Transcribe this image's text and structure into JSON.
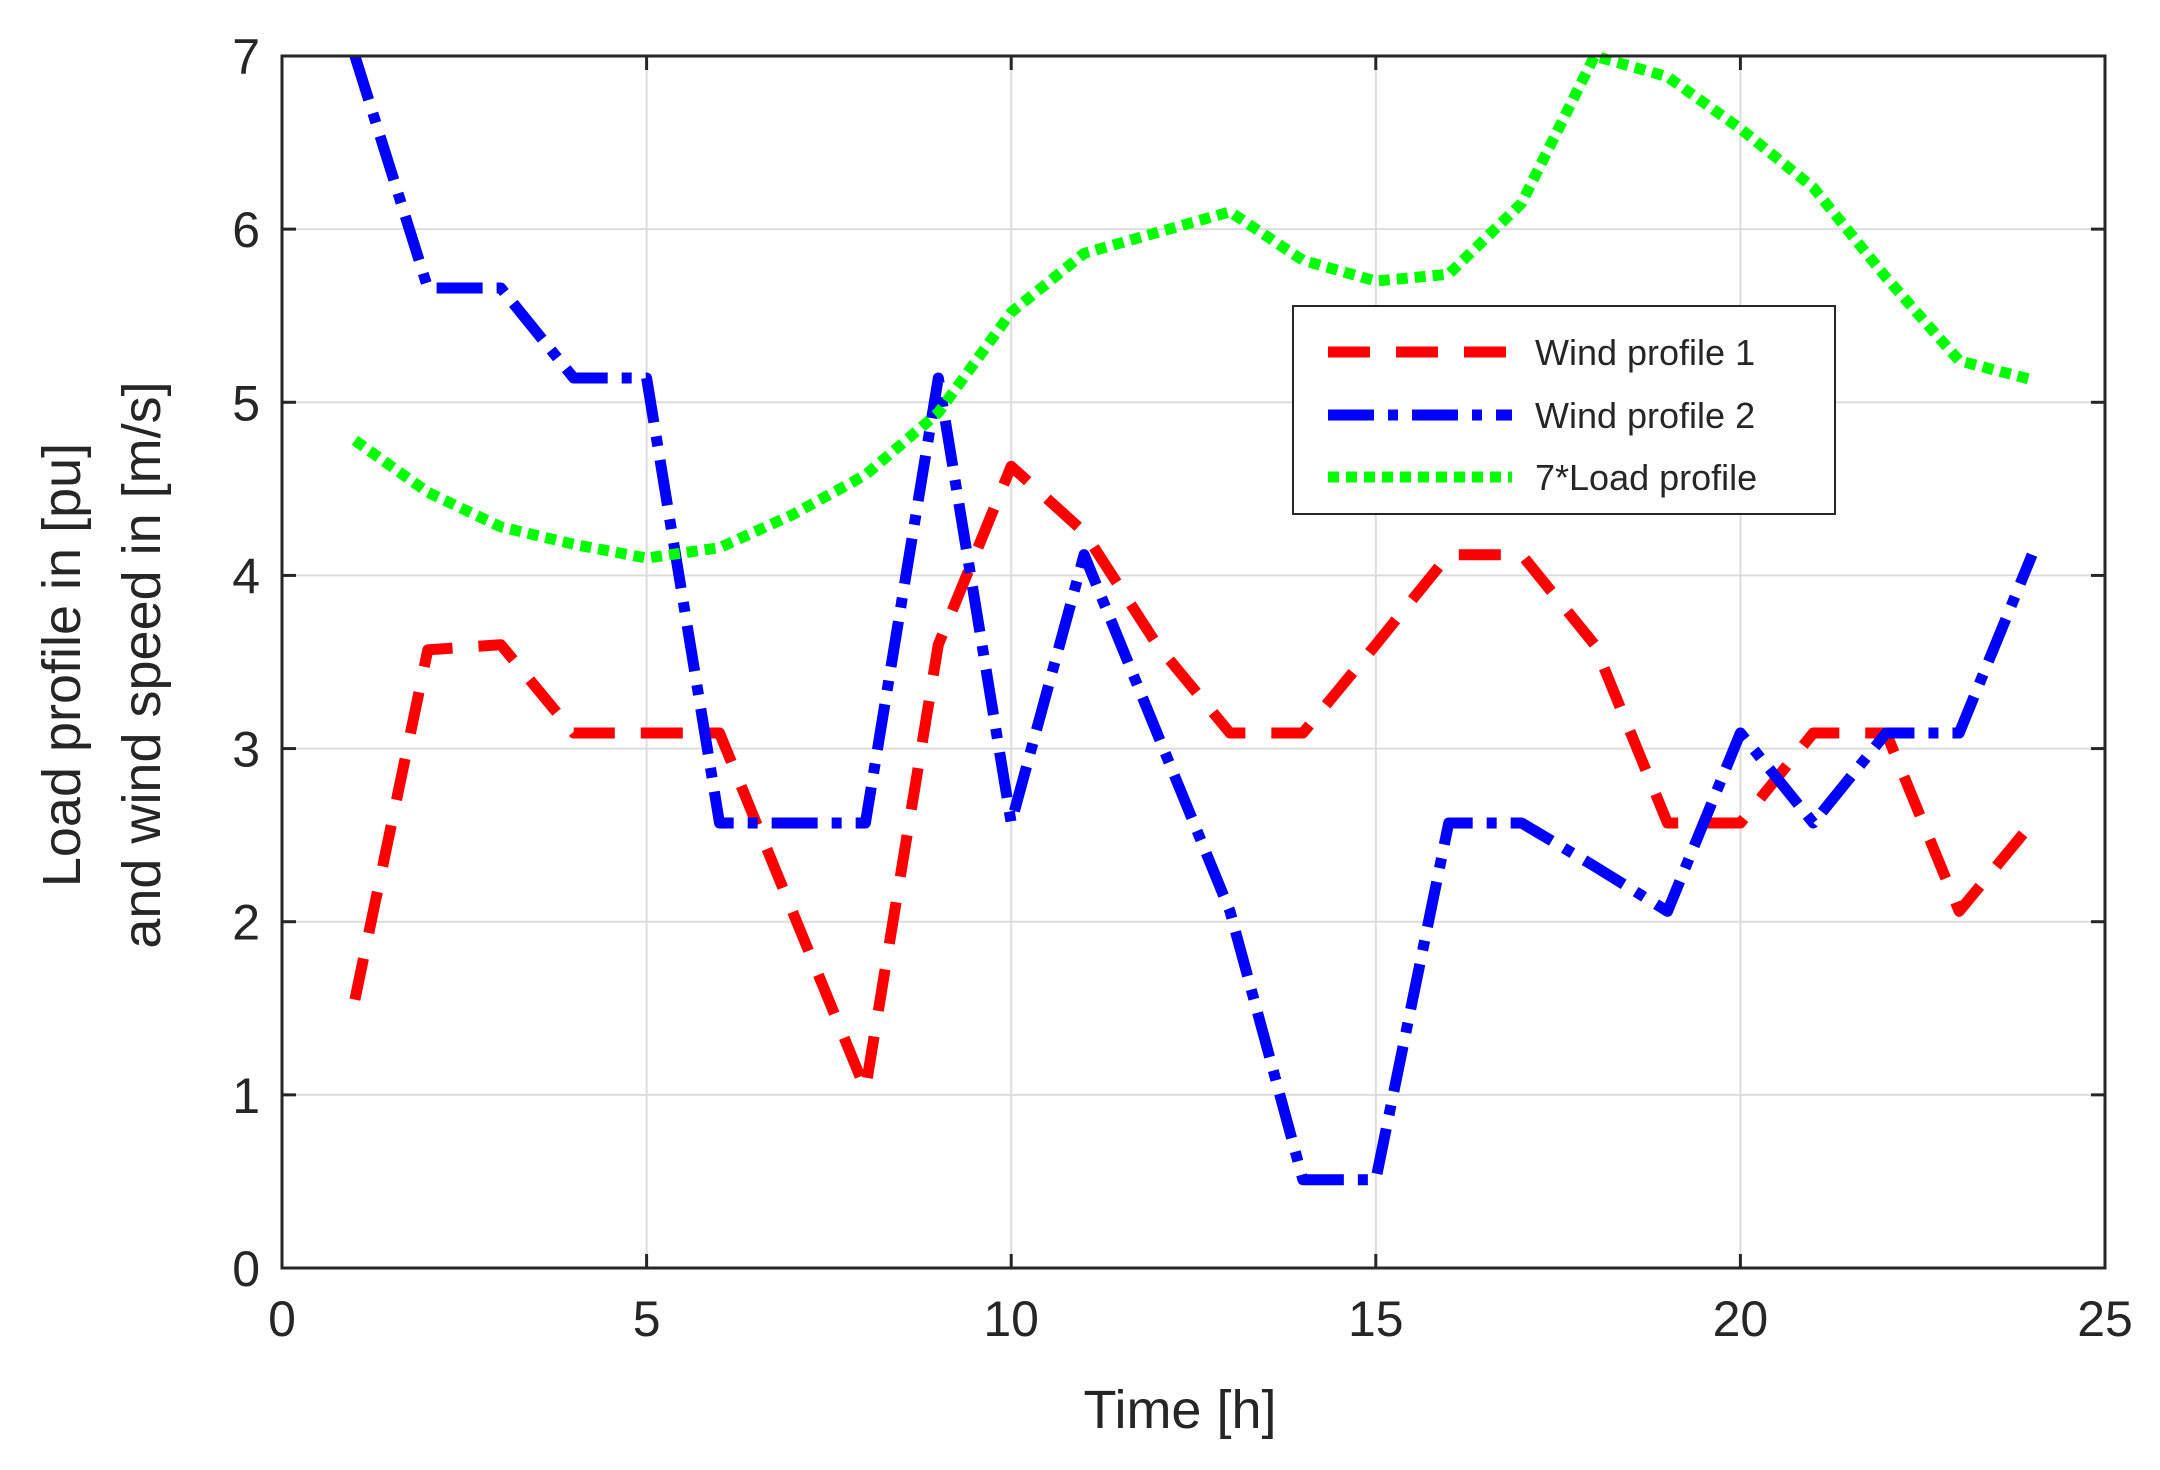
{
  "chart_data": {
    "type": "line",
    "xlabel": "Time [h]",
    "ylabel_line1": "Load profile in [pu]",
    "ylabel_line2": "and wind speed in [m/s]",
    "xlim": [
      0,
      25
    ],
    "ylim": [
      0,
      7
    ],
    "xticks": [
      0,
      5,
      10,
      15,
      20,
      25
    ],
    "yticks": [
      0,
      1,
      2,
      3,
      4,
      5,
      6,
      7
    ],
    "grid": true,
    "legend_position": "upper-right-inside",
    "x": [
      1,
      2,
      3,
      4,
      5,
      6,
      7,
      8,
      9,
      10,
      11,
      12,
      13,
      14,
      15,
      16,
      17,
      18,
      19,
      20,
      21,
      22,
      23,
      24
    ],
    "series": [
      {
        "name": "Wind profile 1",
        "color": "#ff0000",
        "style": "dashed",
        "values": [
          1.55,
          3.57,
          3.6,
          3.09,
          3.09,
          3.09,
          2.06,
          1.03,
          3.6,
          4.63,
          4.25,
          3.6,
          3.09,
          3.09,
          3.6,
          4.12,
          4.12,
          3.6,
          2.57,
          2.57,
          3.09,
          3.09,
          2.06,
          2.57
        ]
      },
      {
        "name": "Wind profile 2",
        "color": "#0000ff",
        "style": "dashdot",
        "values": [
          7.0,
          5.66,
          5.66,
          5.14,
          5.14,
          2.57,
          2.57,
          2.57,
          5.14,
          2.57,
          4.12,
          3.09,
          2.06,
          0.51,
          0.51,
          2.57,
          2.57,
          2.32,
          2.06,
          3.09,
          2.57,
          3.09,
          3.09,
          4.12
        ]
      },
      {
        "name": "7*Load profile",
        "color": "#00ff00",
        "style": "dotted",
        "values": [
          4.78,
          4.48,
          4.28,
          4.18,
          4.1,
          4.16,
          4.35,
          4.58,
          4.94,
          5.52,
          5.86,
          5.98,
          6.1,
          5.82,
          5.7,
          5.74,
          6.15,
          7.0,
          6.88,
          6.58,
          6.24,
          5.72,
          5.24,
          5.13
        ]
      }
    ]
  }
}
